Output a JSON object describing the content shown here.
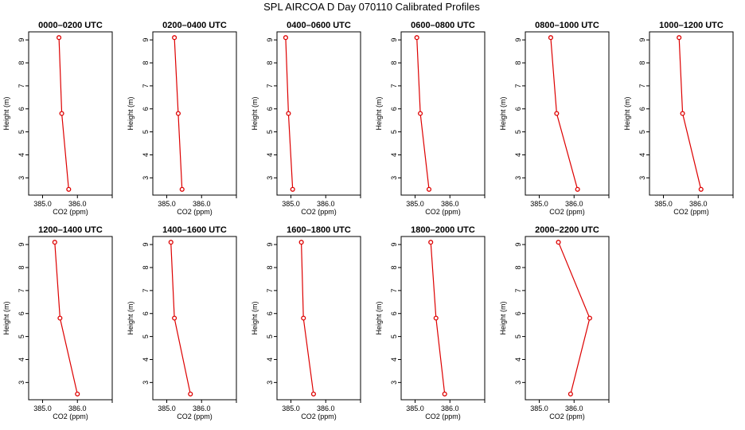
{
  "title": "SPL AIRCOA D  Day 070110  Calibrated Profiles",
  "colors": {
    "series": "#dd0000",
    "axis": "#000000"
  },
  "chart_data": [
    {
      "type": "line",
      "title": "0000–0200 UTC",
      "xlabel": "CO2 (ppm)",
      "ylabel": "Height (m)",
      "xlim": [
        384.6,
        387.0
      ],
      "ylim": [
        2.25,
        9.35
      ],
      "xticks": [
        "385.0",
        "386.0"
      ],
      "yticks": [
        3,
        4,
        5,
        6,
        7,
        8,
        9
      ],
      "x": [
        385.47,
        385.55,
        385.75
      ],
      "y": [
        9.1,
        5.8,
        2.5
      ]
    },
    {
      "type": "line",
      "title": "0200–0400 UTC",
      "xlabel": "CO2 (ppm)",
      "ylabel": "Height (m)",
      "xlim": [
        384.6,
        387.0
      ],
      "ylim": [
        2.25,
        9.35
      ],
      "xticks": [
        "385.0",
        "386.0"
      ],
      "yticks": [
        3,
        4,
        5,
        6,
        7,
        8,
        9
      ],
      "x": [
        385.22,
        385.33,
        385.44
      ],
      "y": [
        9.1,
        5.8,
        2.5
      ]
    },
    {
      "type": "line",
      "title": "0400–0600 UTC",
      "xlabel": "CO2 (ppm)",
      "ylabel": "Height (m)",
      "xlim": [
        384.6,
        387.0
      ],
      "ylim": [
        2.25,
        9.35
      ],
      "xticks": [
        "385.0",
        "386.0"
      ],
      "yticks": [
        3,
        4,
        5,
        6,
        7,
        8,
        9
      ],
      "x": [
        384.85,
        384.93,
        385.05
      ],
      "y": [
        9.1,
        5.8,
        2.5
      ]
    },
    {
      "type": "line",
      "title": "0600–0800 UTC",
      "xlabel": "CO2 (ppm)",
      "ylabel": "Height (m)",
      "xlim": [
        384.6,
        387.0
      ],
      "ylim": [
        2.25,
        9.35
      ],
      "xticks": [
        "385.0",
        "386.0"
      ],
      "yticks": [
        3,
        4,
        5,
        6,
        7,
        8,
        9
      ],
      "x": [
        385.05,
        385.15,
        385.4
      ],
      "y": [
        9.1,
        5.8,
        2.5
      ]
    },
    {
      "type": "line",
      "title": "0800–1000 UTC",
      "xlabel": "CO2 (ppm)",
      "ylabel": "Height (m)",
      "xlim": [
        384.6,
        387.0
      ],
      "ylim": [
        2.25,
        9.35
      ],
      "xticks": [
        "385.0",
        "386.0"
      ],
      "yticks": [
        3,
        4,
        5,
        6,
        7,
        8,
        9
      ],
      "x": [
        385.33,
        385.5,
        386.1
      ],
      "y": [
        9.1,
        5.8,
        2.5
      ]
    },
    {
      "type": "line",
      "title": "1000–1200 UTC",
      "xlabel": "CO2 (ppm)",
      "ylabel": "Height (m)",
      "xlim": [
        384.6,
        387.0
      ],
      "ylim": [
        2.25,
        9.35
      ],
      "xticks": [
        "385.0",
        "386.0"
      ],
      "yticks": [
        3,
        4,
        5,
        6,
        7,
        8,
        9
      ],
      "x": [
        385.45,
        385.55,
        386.08
      ],
      "y": [
        9.1,
        5.8,
        2.5
      ]
    },
    {
      "type": "line",
      "title": "1200–1400 UTC",
      "xlabel": "CO2 (ppm)",
      "ylabel": "Height (m)",
      "xlim": [
        384.6,
        387.0
      ],
      "ylim": [
        2.25,
        9.35
      ],
      "xticks": [
        "385.0",
        "386.0"
      ],
      "yticks": [
        3,
        4,
        5,
        6,
        7,
        8,
        9
      ],
      "x": [
        385.35,
        385.5,
        386.0
      ],
      "y": [
        9.1,
        5.8,
        2.5
      ]
    },
    {
      "type": "line",
      "title": "1400–1600 UTC",
      "xlabel": "CO2 (ppm)",
      "ylabel": "Height (m)",
      "xlim": [
        384.6,
        387.0
      ],
      "ylim": [
        2.25,
        9.35
      ],
      "xticks": [
        "385.0",
        "386.0"
      ],
      "yticks": [
        3,
        4,
        5,
        6,
        7,
        8,
        9
      ],
      "x": [
        385.12,
        385.22,
        385.68
      ],
      "y": [
        9.1,
        5.8,
        2.5
      ]
    },
    {
      "type": "line",
      "title": "1600–1800 UTC",
      "xlabel": "CO2 (ppm)",
      "ylabel": "Height (m)",
      "xlim": [
        384.6,
        387.0
      ],
      "ylim": [
        2.25,
        9.35
      ],
      "xticks": [
        "385.0",
        "386.0"
      ],
      "yticks": [
        3,
        4,
        5,
        6,
        7,
        8,
        9
      ],
      "x": [
        385.3,
        385.36,
        385.65
      ],
      "y": [
        9.1,
        5.8,
        2.5
      ]
    },
    {
      "type": "line",
      "title": "1800–2000 UTC",
      "xlabel": "CO2 (ppm)",
      "ylabel": "Height (m)",
      "xlim": [
        384.6,
        387.0
      ],
      "ylim": [
        2.25,
        9.35
      ],
      "xticks": [
        "385.0",
        "386.0"
      ],
      "yticks": [
        3,
        4,
        5,
        6,
        7,
        8,
        9
      ],
      "x": [
        385.45,
        385.6,
        385.85
      ],
      "y": [
        9.1,
        5.8,
        2.5
      ]
    },
    {
      "type": "line",
      "title": "2000–2200 UTC",
      "xlabel": "CO2 (ppm)",
      "ylabel": "Height (m)",
      "xlim": [
        384.6,
        387.0
      ],
      "ylim": [
        2.25,
        9.35
      ],
      "xticks": [
        "385.0",
        "386.0"
      ],
      "yticks": [
        3,
        4,
        5,
        6,
        7,
        8,
        9
      ],
      "x": [
        385.55,
        386.45,
        385.9
      ],
      "y": [
        9.1,
        5.8,
        2.5
      ]
    }
  ]
}
